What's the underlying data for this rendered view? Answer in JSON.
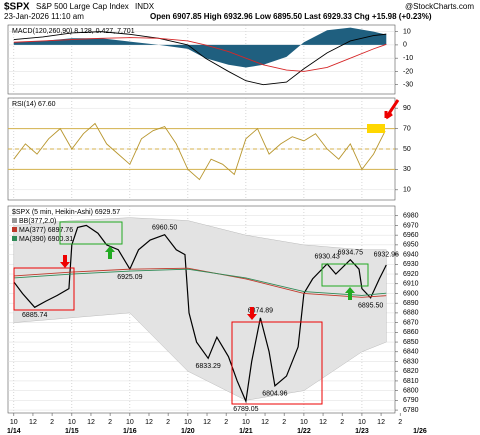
{
  "header": {
    "symbol": "$SPX",
    "name": "S&P 500 Large Cap Index",
    "exchange": "INDX",
    "timestamp": "23-Jan-2026 11:10 am",
    "quote": "Open 6907.85 High 6932.96 Low 6895.50 Last 6929.33 Chg +15.98 (+0.23%)",
    "credit": "@StockCharts.com"
  },
  "chart_data": [
    {
      "type": "line",
      "title": "MACD(120,260,90) 8.128, 0.427, 7.701",
      "xlim": [
        -0.1,
        6.57
      ],
      "ylim": [
        -37,
        15
      ],
      "yticks": [
        10,
        0,
        -10,
        -20,
        -30
      ],
      "series": [
        {
          "kind": "histogram",
          "color": "#1f5f7f",
          "x": [
            0,
            0.5,
            1,
            1.5,
            2,
            2.5,
            3,
            3.3,
            3.7,
            4,
            4.3,
            4.7,
            5,
            5.4,
            5.8,
            6.2,
            6.42
          ],
          "values": [
            2,
            3,
            5,
            5,
            2.5,
            0,
            -3,
            -10,
            -15,
            -17,
            -15,
            -9,
            2,
            11,
            13,
            10,
            7.701
          ]
        },
        {
          "kind": "line",
          "color": "#000000",
          "x": [
            0,
            0.5,
            1,
            1.5,
            2,
            2.5,
            3,
            3.3,
            3.7,
            4,
            4.3,
            4.7,
            5,
            5.4,
            5.8,
            6.2,
            6.42
          ],
          "values": [
            4,
            6,
            9,
            10,
            8,
            5,
            0,
            -10,
            -20,
            -27,
            -30,
            -28,
            -18,
            -6,
            3,
            7,
            8.128
          ]
        },
        {
          "kind": "line",
          "color": "#d62728",
          "x": [
            0,
            0.5,
            1,
            1.5,
            2,
            2.5,
            3,
            3.3,
            3.7,
            4,
            4.3,
            4.7,
            5,
            5.4,
            5.8,
            6.2,
            6.42
          ],
          "values": [
            2,
            3,
            4,
            5,
            5.5,
            5,
            3,
            0,
            -5,
            -10,
            -15,
            -19,
            -20,
            -17,
            -10,
            -3,
            0.427
          ]
        }
      ]
    },
    {
      "type": "line",
      "title": "RSI(14) 67.60",
      "xlim": [
        -0.1,
        6.57
      ],
      "ylim": [
        0,
        100
      ],
      "yticks": [
        90,
        70,
        50,
        30,
        10
      ],
      "guides": [
        70,
        50,
        30
      ],
      "guide_color": "#d4b24c",
      "series": [
        {
          "kind": "line",
          "color": "#b8962e",
          "x": [
            0,
            0.2,
            0.4,
            0.6,
            0.8,
            1,
            1.2,
            1.4,
            1.6,
            1.8,
            2,
            2.2,
            2.4,
            2.6,
            2.8,
            3,
            3.2,
            3.4,
            3.6,
            3.8,
            4,
            4.2,
            4.4,
            4.6,
            4.8,
            5,
            5.2,
            5.4,
            5.6,
            5.8,
            6,
            6.2,
            6.4
          ],
          "values": [
            40,
            55,
            45,
            60,
            70,
            50,
            65,
            75,
            55,
            45,
            35,
            60,
            68,
            72,
            55,
            30,
            20,
            40,
            35,
            25,
            60,
            70,
            45,
            55,
            62,
            58,
            65,
            50,
            40,
            55,
            30,
            45,
            67.6
          ]
        }
      ]
    },
    {
      "type": "line",
      "title": "$SPX (5 min, Heikin-Ashi) 6929.57",
      "xlim": [
        -0.1,
        6.57
      ],
      "ylim": [
        6777,
        6990
      ],
      "yticks": [
        6780,
        6790,
        6800,
        6810,
        6820,
        6830,
        6840,
        6850,
        6860,
        6870,
        6880,
        6890,
        6900,
        6910,
        6920,
        6930,
        6940,
        6950,
        6960,
        6970,
        6980
      ],
      "xticks": [
        {
          "value": 0,
          "label": "10"
        },
        {
          "value": 0.33,
          "label": "12"
        },
        {
          "value": 0.66,
          "label": "2"
        },
        {
          "value": 1,
          "label": "10"
        },
        {
          "value": 1.33,
          "label": "12"
        },
        {
          "value": 1.66,
          "label": "2"
        },
        {
          "value": 2,
          "label": "10"
        },
        {
          "value": 2.33,
          "label": "12"
        },
        {
          "value": 2.66,
          "label": "2"
        },
        {
          "value": 3,
          "label": "10"
        },
        {
          "value": 3.33,
          "label": "12"
        },
        {
          "value": 3.66,
          "label": "2"
        },
        {
          "value": 4,
          "label": "10"
        },
        {
          "value": 4.33,
          "label": "12"
        },
        {
          "value": 4.66,
          "label": "2"
        },
        {
          "value": 5,
          "label": "10"
        },
        {
          "value": 5.33,
          "label": "12"
        },
        {
          "value": 5.66,
          "label": "2"
        },
        {
          "value": 6,
          "label": "10"
        },
        {
          "value": 6.33,
          "label": "12"
        },
        {
          "value": 6.66,
          "label": "2"
        }
      ],
      "xday_ticks": [
        {
          "value": 0,
          "label": "1/14"
        },
        {
          "value": 1,
          "label": "1/15"
        },
        {
          "value": 2,
          "label": "1/16"
        },
        {
          "value": 3,
          "label": "1/20"
        },
        {
          "value": 4,
          "label": "1/21"
        },
        {
          "value": 5,
          "label": "1/22"
        },
        {
          "value": 6,
          "label": "1/23"
        },
        {
          "value": 7,
          "label": "1/26"
        }
      ],
      "series": [
        {
          "name": "BB(377,2.0)",
          "kind": "band",
          "color": "#e3e3e3",
          "x": [
            0,
            1,
            2,
            3,
            4,
            5,
            6,
            6.42
          ],
          "upper": [
            6970,
            6975,
            6978,
            6975,
            6960,
            6950,
            6945,
            6945
          ],
          "lower": [
            6870,
            6875,
            6880,
            6820,
            6790,
            6800,
            6840,
            6850
          ]
        },
        {
          "kind": "line",
          "color": "#000000",
          "x": [
            0,
            0.15,
            0.36,
            0.55,
            0.75,
            0.95,
            1.0,
            1.1,
            1.25,
            1.45,
            1.6,
            1.8,
            2.0,
            2.15,
            2.35,
            2.6,
            2.8,
            2.95,
            3.02,
            3.15,
            3.35,
            3.5,
            3.7,
            3.85,
            4.0,
            4.1,
            4.25,
            4.4,
            4.5,
            4.7,
            4.9,
            5.0,
            5.15,
            5.4,
            5.55,
            5.8,
            5.95,
            6.0,
            6.15,
            6.3,
            6.42
          ],
          "values": [
            6912,
            6900,
            6885.74,
            6892,
            6898,
            6905,
            6950,
            6968,
            6970,
            6962,
            6950,
            6945,
            6925.09,
            6945,
            6955,
            6960.5,
            6945,
            6940,
            6880,
            6850,
            6833.29,
            6855,
            6835,
            6810,
            6789.05,
            6830,
            6874.89,
            6840,
            6804.96,
            6815,
            6845,
            6900,
            6915,
            6930.43,
            6920,
            6934.75,
            6925,
            6905,
            6895.5,
            6915,
            6929.33
          ]
        },
        {
          "name": "MA(377) 6897.76",
          "kind": "line",
          "color": "#c0392b",
          "x": [
            0,
            1,
            2,
            3,
            4,
            5,
            6,
            6.42
          ],
          "values": [
            6918,
            6922,
            6925,
            6926,
            6915,
            6900,
            6896,
            6897.76
          ]
        },
        {
          "name": "MA(390) 6900.31",
          "kind": "line",
          "color": "#2e8b57",
          "x": [
            0,
            1,
            2,
            3,
            4,
            5,
            6,
            6.42
          ],
          "values": [
            6916,
            6920,
            6923,
            6925,
            6916,
            6902,
            6898,
            6900.31
          ]
        }
      ],
      "annotations": [
        {
          "label": "6885.74",
          "x": 0.36,
          "value": 6885.74,
          "pos": "below"
        },
        {
          "label": "6960.50",
          "x": 2.6,
          "value": 6960.5,
          "pos": "above"
        },
        {
          "label": "6925.09",
          "x": 2.0,
          "value": 6925.09,
          "pos": "below"
        },
        {
          "label": "6833.29",
          "x": 3.35,
          "value": 6833.29,
          "pos": "below"
        },
        {
          "label": "6789.05",
          "x": 4.0,
          "value": 6789.05,
          "pos": "below"
        },
        {
          "label": "6874.89",
          "x": 4.25,
          "value": 6874.89,
          "pos": "above"
        },
        {
          "label": "6804.96",
          "x": 4.5,
          "value": 6804.96,
          "pos": "below"
        },
        {
          "label": "6930.43",
          "x": 5.4,
          "value": 6930.43,
          "pos": "above"
        },
        {
          "label": "6934.75",
          "x": 5.8,
          "value": 6934.75,
          "pos": "above"
        },
        {
          "label": "6895.50",
          "x": 6.15,
          "value": 6895.5,
          "pos": "below"
        },
        {
          "label": "6932.96",
          "x": 6.42,
          "value": 6932.96,
          "pos": "above"
        }
      ]
    }
  ]
}
